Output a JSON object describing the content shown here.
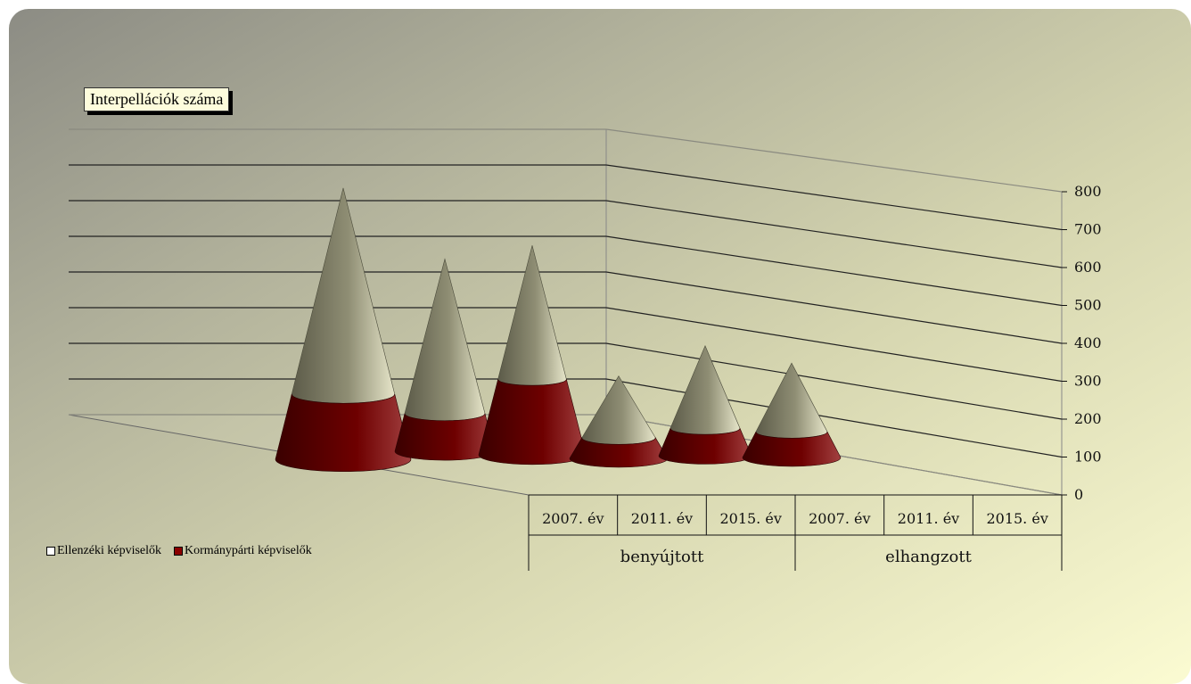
{
  "chart_data": {
    "type": "bar",
    "title": "Interpellációk száma",
    "groups": [
      {
        "label": "benyújtott",
        "categories": [
          "2007. év",
          "2011. év",
          "2015. év"
        ]
      },
      {
        "label": "elhangzott",
        "categories": [
          "2007. év",
          "2011. év",
          "2015. év"
        ]
      }
    ],
    "categories": [
      "2007. év",
      "2011. év",
      "2015. év",
      "2007. év",
      "2011. év",
      "2015. év"
    ],
    "series": [
      {
        "name": "Ellenzéki képviselők",
        "values": [
          600,
          450,
          390,
          180,
          240,
          200
        ],
        "color": "#7e7d66"
      },
      {
        "name": "Kormánypárti képviselők",
        "values": [
          190,
          110,
          220,
          60,
          80,
          75
        ],
        "color": "#5c0000"
      }
    ],
    "stacked": true,
    "ylim": [
      0,
      800
    ],
    "yticks": [
      "0",
      "100",
      "200",
      "300",
      "400",
      "500",
      "600",
      "700",
      "800"
    ],
    "legend_position": "bottom-left",
    "grid": true
  }
}
